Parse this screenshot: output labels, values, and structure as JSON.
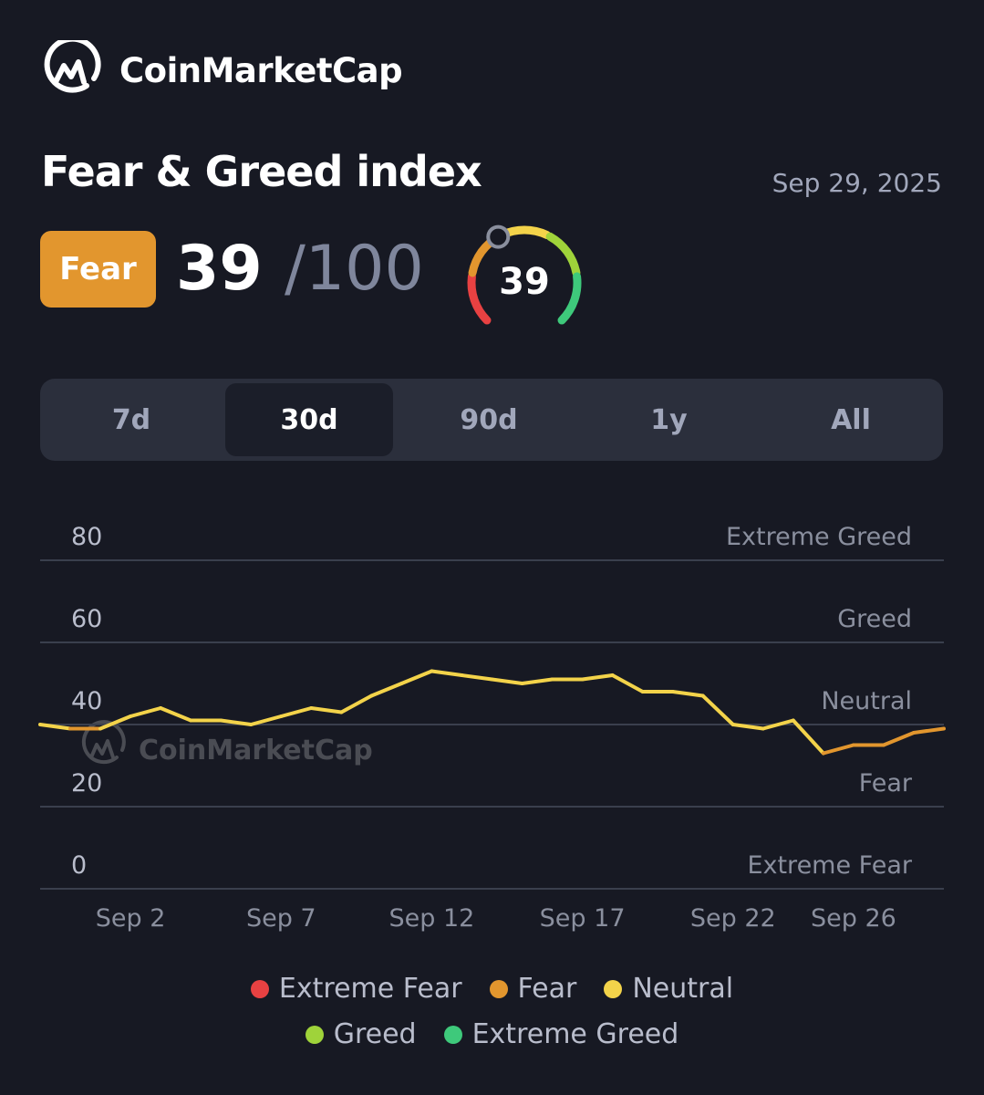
{
  "header": {
    "brand_name": "CoinMarketCap",
    "logo_icon": "coinmarketcap-logo-icon"
  },
  "index": {
    "title": "Fear & Greed index",
    "date": "Sep 29, 2025",
    "label": "Fear",
    "label_color": "#e2962e",
    "value": "39",
    "max_text": "/100",
    "gauge_value": "39",
    "gauge_fraction": 0.39
  },
  "tabs": [
    {
      "label": "7d",
      "active": false
    },
    {
      "label": "30d",
      "active": true
    },
    {
      "label": "90d",
      "active": false
    },
    {
      "label": "1y",
      "active": false
    },
    {
      "label": "All",
      "active": false
    }
  ],
  "chart_data": {
    "type": "line",
    "watermark": "CoinMarketCap",
    "x": [
      "Aug 30",
      "Aug 31",
      "Sep 1",
      "Sep 2",
      "Sep 3",
      "Sep 4",
      "Sep 5",
      "Sep 6",
      "Sep 7",
      "Sep 8",
      "Sep 9",
      "Sep 10",
      "Sep 11",
      "Sep 12",
      "Sep 13",
      "Sep 14",
      "Sep 15",
      "Sep 16",
      "Sep 17",
      "Sep 18",
      "Sep 19",
      "Sep 20",
      "Sep 21",
      "Sep 22",
      "Sep 23",
      "Sep 24",
      "Sep 25",
      "Sep 26",
      "Sep 27",
      "Sep 28",
      "Sep 29"
    ],
    "values": [
      40,
      39,
      39,
      42,
      44,
      41,
      41,
      40,
      42,
      44,
      43,
      47,
      50,
      53,
      52,
      51,
      50,
      51,
      51,
      52,
      48,
      48,
      47,
      40,
      39,
      41,
      33,
      35,
      35,
      38,
      39
    ],
    "xticks": [
      "Sep 2",
      "Sep 7",
      "Sep 12",
      "Sep 17",
      "Sep 22",
      "Sep 26"
    ],
    "yticks": [
      "80",
      "60",
      "40",
      "20",
      "0"
    ],
    "ylim": [
      0,
      80
    ],
    "zones": [
      "Extreme Greed",
      "Greed",
      "Neutral",
      "Fear",
      "Extreme Fear"
    ],
    "grid": true,
    "legend_position": "bottom",
    "legend": [
      {
        "label": "Extreme Fear",
        "color": "#e84142"
      },
      {
        "label": "Fear",
        "color": "#e2962e"
      },
      {
        "label": "Neutral",
        "color": "#f3d34a"
      },
      {
        "label": "Greed",
        "color": "#9fd33a"
      },
      {
        "label": "Extreme Greed",
        "color": "#3ec97b"
      }
    ]
  }
}
